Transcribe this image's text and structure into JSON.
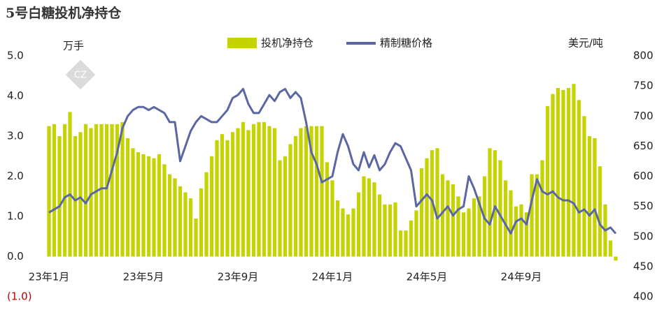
{
  "chart_data": {
    "type": "combo",
    "title": "5号白糖投机净持仓",
    "y_label": "万手",
    "y2_label": "美元/吨",
    "categories": [
      "23年1月",
      null,
      null,
      null,
      null,
      null,
      null,
      null,
      null,
      null,
      null,
      null,
      null,
      null,
      null,
      null,
      null,
      null,
      "23年5月",
      null,
      null,
      null,
      null,
      null,
      null,
      null,
      null,
      null,
      null,
      null,
      null,
      null,
      null,
      null,
      null,
      null,
      "23年9月",
      null,
      null,
      null,
      null,
      null,
      null,
      null,
      null,
      null,
      null,
      null,
      null,
      null,
      null,
      null,
      null,
      null,
      "24年1月",
      null,
      null,
      null,
      null,
      null,
      null,
      null,
      null,
      null,
      null,
      null,
      null,
      null,
      null,
      null,
      null,
      null,
      "24年5月",
      null,
      null,
      null,
      null,
      null,
      null,
      null,
      null,
      null,
      null,
      null,
      null,
      null,
      null,
      null,
      null,
      null,
      "24年9月",
      null,
      null,
      null,
      null,
      null,
      null,
      null,
      null,
      null,
      null,
      null,
      null,
      null,
      null,
      null,
      null,
      null,
      null
    ],
    "series": [
      {
        "name": "投机净持仓",
        "type": "bar",
        "color": "#c5d300",
        "axis": "y",
        "values": [
          3.25,
          3.3,
          3.0,
          3.3,
          3.6,
          3.0,
          3.1,
          3.3,
          3.2,
          3.3,
          3.3,
          3.3,
          3.3,
          3.3,
          3.35,
          2.95,
          2.7,
          2.6,
          2.55,
          2.5,
          2.45,
          2.55,
          2.3,
          2.05,
          1.95,
          1.75,
          1.6,
          1.45,
          0.95,
          1.7,
          2.1,
          2.5,
          2.9,
          3.05,
          2.9,
          3.1,
          3.2,
          3.35,
          3.15,
          3.3,
          3.35,
          3.35,
          3.25,
          3.2,
          2.4,
          2.5,
          2.8,
          3.0,
          3.2,
          3.25,
          3.25,
          3.25,
          3.25,
          2.35,
          1.9,
          1.4,
          1.2,
          1.05,
          1.2,
          1.6,
          2.0,
          1.95,
          1.85,
          1.55,
          1.3,
          1.3,
          1.35,
          0.65,
          0.65,
          0.9,
          1.15,
          2.2,
          2.45,
          2.65,
          2.7,
          2.05,
          1.9,
          1.8,
          1.5,
          1.1,
          1.2,
          1.45,
          1.5,
          2.0,
          2.7,
          2.65,
          2.4,
          1.9,
          1.65,
          1.25,
          1.3,
          1.1,
          2.05,
          2.05,
          2.4,
          3.75,
          4.05,
          4.2,
          4.15,
          4.2,
          4.3,
          3.9,
          3.5,
          3.0,
          2.95,
          2.25,
          1.3,
          0.4,
          -0.1
        ]
      },
      {
        "name": "精制糖价格",
        "type": "line",
        "color": "#5a67a3",
        "axis": "y2",
        "values": [
          540,
          545,
          550,
          565,
          570,
          560,
          565,
          555,
          570,
          575,
          580,
          580,
          610,
          640,
          680,
          700,
          710,
          715,
          715,
          710,
          715,
          710,
          705,
          690,
          690,
          625,
          650,
          675,
          690,
          700,
          695,
          690,
          690,
          700,
          710,
          730,
          735,
          745,
          720,
          705,
          705,
          720,
          735,
          725,
          740,
          745,
          730,
          740,
          730,
          690,
          640,
          620,
          590,
          595,
          600,
          640,
          670,
          650,
          620,
          610,
          640,
          615,
          635,
          610,
          620,
          640,
          655,
          650,
          630,
          610,
          550,
          560,
          570,
          560,
          530,
          540,
          550,
          535,
          545,
          550,
          600,
          580,
          555,
          530,
          520,
          550,
          535,
          520,
          505,
          525,
          530,
          520,
          560,
          595,
          575,
          570,
          575,
          565,
          560,
          560,
          555,
          540,
          545,
          535,
          545,
          520,
          510,
          515,
          505
        ]
      }
    ],
    "ylim": [
      -1,
      5
    ],
    "yticks": [
      {
        "value": -1,
        "label": "(1.0)"
      },
      {
        "value": 0,
        "label": "0.0"
      },
      {
        "value": 1,
        "label": "1.0"
      },
      {
        "value": 2,
        "label": "2.0"
      },
      {
        "value": 3,
        "label": "3.0"
      },
      {
        "value": 4,
        "label": "4.0"
      },
      {
        "value": 5,
        "label": "5.0"
      }
    ],
    "negative_label_color": "#c00000",
    "y2lim": [
      400,
      800
    ],
    "y2ticks": [
      400,
      450,
      500,
      550,
      600,
      650,
      700,
      750,
      800
    ],
    "legend": "top"
  }
}
